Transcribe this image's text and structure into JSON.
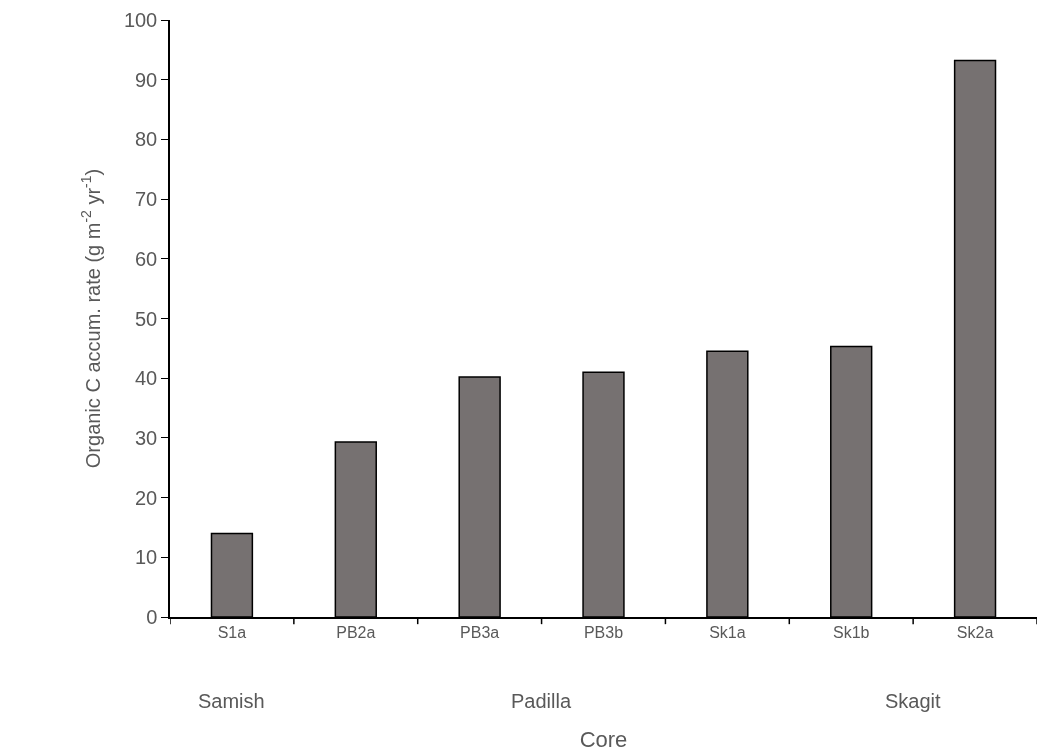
{
  "chart_data": {
    "type": "bar",
    "categories": [
      "S1a",
      "PB2a",
      "PB3a",
      "PB3b",
      "Sk1a",
      "Sk1b",
      "Sk2a"
    ],
    "values": [
      14,
      29.3,
      40.2,
      41,
      44.5,
      45.3,
      93.2
    ],
    "color": "#767171",
    "xlabel": "Core",
    "ylabel": "Organic C accum. rate (g m$^{-2}$ yr$^{-1}$)",
    "ylim": [
      0,
      100
    ],
    "yticks": [
      0,
      10,
      20,
      30,
      40,
      50,
      60,
      70,
      80,
      90,
      100
    ],
    "grid": false,
    "annotations": [
      "Samish",
      "Padilla",
      "Skagit"
    ]
  }
}
